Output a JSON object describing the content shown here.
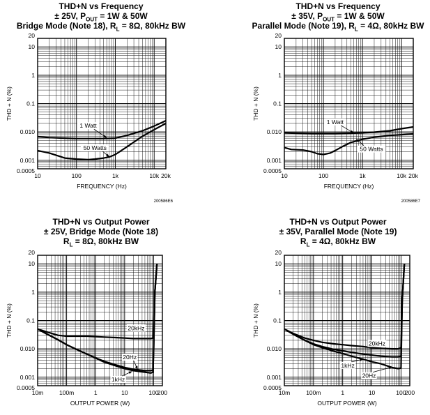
{
  "chart_data": [
    {
      "type": "line",
      "title_lines": [
        [
          "THD+N vs Frequency"
        ],
        [
          "± 25V, P",
          "OUT",
          " = 1W & 50W"
        ],
        [
          "Bridge Mode (Note 18), R",
          "L",
          " = 8Ω, 80kHz BW"
        ]
      ],
      "xlabel": "FREQUENCY (Hz)",
      "ylabel": "THD + N (%)",
      "xscale": "log",
      "yscale": "log",
      "xlim": [
        10,
        20000
      ],
      "ylim": [
        0.0005,
        20
      ],
      "xticks": [
        10,
        100,
        1000,
        10000,
        20000
      ],
      "xtick_labels": [
        "10",
        "100",
        "1k",
        "10k",
        "20k"
      ],
      "yticks": [
        0.0005,
        0.001,
        0.01,
        0.1,
        1,
        10,
        20
      ],
      "ytick_labels": [
        "0.0005",
        "0.001",
        "0.010",
        "0.1",
        "1",
        "10",
        "20"
      ],
      "figure_id": "200586E6",
      "series": [
        {
          "name": "1 Watt",
          "x": [
            10,
            20,
            50,
            100,
            200,
            500,
            1000,
            2000,
            5000,
            10000,
            20000
          ],
          "y": [
            0.0068,
            0.0063,
            0.006,
            0.0058,
            0.0058,
            0.0058,
            0.006,
            0.0075,
            0.011,
            0.016,
            0.025
          ]
        },
        {
          "name": "50 Watts",
          "x": [
            10,
            20,
            30,
            50,
            100,
            200,
            300,
            500,
            700,
            1000,
            2000,
            5000,
            10000,
            20000
          ],
          "y": [
            0.0022,
            0.0018,
            0.0015,
            0.0012,
            0.0011,
            0.00105,
            0.0011,
            0.0012,
            0.0013,
            0.0016,
            0.003,
            0.007,
            0.012,
            0.02
          ]
        }
      ],
      "annotations": [
        {
          "text": "1 Watt",
          "x": 200,
          "y": 0.014,
          "ax": 600,
          "ay": 0.0062
        },
        {
          "text": "50 Watts",
          "x": 300,
          "y": 0.0023,
          "ax": 700,
          "ay": 0.0013
        }
      ]
    },
    {
      "type": "line",
      "title_lines": [
        [
          "THD+N vs Frequency"
        ],
        [
          "± 35V, P",
          "OUT",
          " = 1W & 50W"
        ],
        [
          "Parallel Mode (Note 19), R",
          "L",
          " = 4Ω, 80kHz BW"
        ]
      ],
      "xlabel": "FREQUENCY (Hz)",
      "ylabel": "THD + N (%)",
      "xscale": "log",
      "yscale": "log",
      "xlim": [
        10,
        20000
      ],
      "ylim": [
        0.0005,
        20
      ],
      "xticks": [
        10,
        100,
        1000,
        10000,
        20000
      ],
      "xtick_labels": [
        "10",
        "100",
        "1k",
        "10k",
        "20k"
      ],
      "yticks": [
        0.0005,
        0.001,
        0.01,
        0.1,
        1,
        10,
        20
      ],
      "ytick_labels": [
        "0.0005",
        "0.001",
        "0.010",
        "0.1",
        "1",
        "10",
        "20"
      ],
      "figure_id": "200586E7",
      "series": [
        {
          "name": "1 Watt",
          "x": [
            10,
            20,
            50,
            100,
            200,
            500,
            1000,
            2000,
            5000,
            10000,
            20000
          ],
          "y": [
            0.0092,
            0.009,
            0.0088,
            0.0088,
            0.0088,
            0.009,
            0.0092,
            0.0098,
            0.011,
            0.013,
            0.015
          ]
        },
        {
          "name": "50 Watts",
          "x": [
            10,
            15,
            30,
            50,
            70,
            100,
            150,
            200,
            300,
            500,
            1000,
            2000,
            5000,
            10000,
            20000
          ],
          "y": [
            0.0028,
            0.0024,
            0.0023,
            0.002,
            0.0017,
            0.0016,
            0.0018,
            0.0022,
            0.003,
            0.0042,
            0.0055,
            0.0065,
            0.0075,
            0.008,
            0.0085
          ]
        }
      ],
      "annotations": [
        {
          "text": "1 Watt",
          "x": 200,
          "y": 0.019,
          "ax": 600,
          "ay": 0.0091
        },
        {
          "text": "50 Watts",
          "x": 1700,
          "y": 0.0021,
          "ax": 700,
          "ay": 0.0056
        }
      ]
    },
    {
      "type": "line",
      "title_lines": [
        [
          "THD+N vs Output Power"
        ],
        [
          "± 25V, Bridge Mode (Note 18)"
        ],
        [
          "R",
          "L",
          " = 8Ω, 80kHz BW"
        ]
      ],
      "xlabel": "OUTPUT POWER (W)",
      "ylabel": "THD + N (%)",
      "xscale": "log",
      "yscale": "log",
      "xlim": [
        0.01,
        200
      ],
      "ylim": [
        0.0005,
        20
      ],
      "xticks": [
        0.01,
        0.1,
        1,
        10,
        100,
        200
      ],
      "xtick_labels": [
        "10m",
        "100m",
        "1",
        "10",
        "100",
        "200"
      ],
      "yticks": [
        0.0005,
        0.001,
        0.01,
        0.1,
        1,
        10,
        20
      ],
      "ytick_labels": [
        "0.0005",
        "0.001",
        "0.010",
        "0.1",
        "1",
        "10",
        "20"
      ],
      "figure_id": "",
      "series": [
        {
          "name": "20kHz",
          "x": [
            0.01,
            0.02,
            0.05,
            0.1,
            0.2,
            0.5,
            1,
            2,
            5,
            10,
            20,
            50,
            80,
            95,
            100,
            110,
            130
          ],
          "y": [
            0.05,
            0.04,
            0.03,
            0.028,
            0.028,
            0.028,
            0.027,
            0.026,
            0.025,
            0.024,
            0.023,
            0.023,
            0.023,
            0.024,
            0.08,
            1,
            10
          ]
        },
        {
          "name": "20Hz",
          "x": [
            0.01,
            0.02,
            0.05,
            0.1,
            0.2,
            0.5,
            1,
            2,
            5,
            10,
            20,
            50,
            80,
            95,
            100,
            110,
            130
          ],
          "y": [
            0.05,
            0.034,
            0.021,
            0.014,
            0.01,
            0.0065,
            0.0048,
            0.0036,
            0.0027,
            0.0022,
            0.0019,
            0.0017,
            0.0017,
            0.0018,
            0.01,
            1,
            10
          ]
        },
        {
          "name": "1kHz",
          "x": [
            0.01,
            0.02,
            0.05,
            0.1,
            0.2,
            0.5,
            1,
            2,
            5,
            10,
            20,
            50,
            80,
            95,
            100,
            110,
            130
          ],
          "y": [
            0.05,
            0.034,
            0.021,
            0.014,
            0.01,
            0.0065,
            0.0047,
            0.0034,
            0.0025,
            0.002,
            0.0017,
            0.0015,
            0.0014,
            0.0015,
            0.01,
            1,
            10
          ]
        }
      ],
      "annotations": [
        {
          "text": "20kHz",
          "x": 25,
          "y": 0.045,
          "ax": 0,
          "ay": 0
        },
        {
          "text": "20Hz",
          "x": 15,
          "y": 0.0043,
          "ax": 28,
          "ay": 0.0019
        },
        {
          "text": "1kHz",
          "x": 6,
          "y": 0.0007,
          "ax": 18,
          "ay": 0.0016
        }
      ]
    },
    {
      "type": "line",
      "title_lines": [
        [
          "THD+N vs Output Power"
        ],
        [
          "± 35V, Parallel Mode (Note 19)"
        ],
        [
          "R",
          "L",
          " = 4Ω, 80kHz BW"
        ]
      ],
      "xlabel": "OUTPUT POWER (W)",
      "ylabel": "THD + N (%)",
      "xscale": "log",
      "yscale": "log",
      "xlim": [
        0.01,
        200
      ],
      "ylim": [
        0.0005,
        20
      ],
      "xticks": [
        0.01,
        0.1,
        1,
        10,
        100,
        200
      ],
      "xtick_labels": [
        "10m",
        "100m",
        "1",
        "10",
        "100",
        "200"
      ],
      "yticks": [
        0.0005,
        0.001,
        0.01,
        0.1,
        1,
        10,
        20
      ],
      "ytick_labels": [
        "0.0005",
        "0.001",
        "0.010",
        "0.1",
        "1",
        "10",
        "20"
      ],
      "figure_id": "",
      "series": [
        {
          "name": "20kHz",
          "x": [
            0.01,
            0.02,
            0.05,
            0.1,
            0.2,
            0.5,
            1,
            2,
            5,
            10,
            20,
            50,
            80,
            100,
            110,
            130
          ],
          "y": [
            0.05,
            0.035,
            0.024,
            0.02,
            0.017,
            0.015,
            0.014,
            0.013,
            0.012,
            0.011,
            0.0105,
            0.01,
            0.01,
            0.011,
            0.5,
            10
          ]
        },
        {
          "name": "1kHz",
          "x": [
            0.01,
            0.02,
            0.05,
            0.1,
            0.2,
            0.5,
            1,
            2,
            5,
            10,
            20,
            50,
            80,
            100,
            110,
            130
          ],
          "y": [
            0.05,
            0.033,
            0.02,
            0.015,
            0.012,
            0.0095,
            0.0085,
            0.0075,
            0.0065,
            0.006,
            0.0055,
            0.0052,
            0.0052,
            0.0055,
            0.5,
            10
          ]
        },
        {
          "name": "20Hz",
          "x": [
            0.01,
            0.02,
            0.05,
            0.1,
            0.2,
            0.5,
            1,
            2,
            5,
            10,
            20,
            50,
            80,
            100,
            110,
            130
          ],
          "y": [
            0.05,
            0.033,
            0.02,
            0.014,
            0.011,
            0.0082,
            0.0068,
            0.0055,
            0.0043,
            0.0035,
            0.003,
            0.0022,
            0.002,
            0.0021,
            0.5,
            10
          ]
        }
      ],
      "annotations": [
        {
          "text": "20kHz",
          "x": 15,
          "y": 0.013,
          "ax": 0,
          "ay": 0
        },
        {
          "text": "1kHz",
          "x": 1.5,
          "y": 0.0022,
          "ax": 5,
          "ay": 0.0043
        },
        {
          "text": "20Hz",
          "x": 8,
          "y": 0.00095,
          "ax": 50,
          "ay": 0.0023
        }
      ]
    }
  ]
}
